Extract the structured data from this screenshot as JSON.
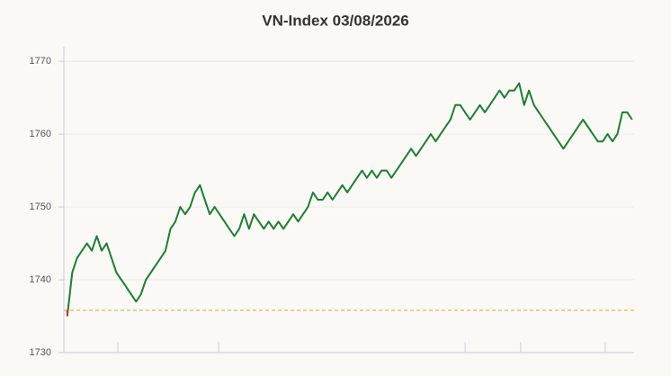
{
  "chart_data": {
    "type": "line",
    "title": "VN-Index 03/08/2026",
    "values": [
      1735,
      1741,
      1743,
      1744,
      1745,
      1744,
      1746,
      1744,
      1745,
      1743,
      1741,
      1740,
      1739,
      1738,
      1737,
      1738,
      1740,
      1741,
      1742,
      1743,
      1744,
      1747,
      1748,
      1750,
      1749,
      1750,
      1752,
      1753,
      1751,
      1749,
      1750,
      1749,
      1748,
      1747,
      1746,
      1747,
      1749,
      1747,
      1749,
      1748,
      1747,
      1748,
      1747,
      1748,
      1747,
      1748,
      1749,
      1748,
      1749,
      1750,
      1752,
      1751,
      1751,
      1752,
      1751,
      1752,
      1753,
      1752,
      1753,
      1754,
      1755,
      1754,
      1755,
      1754,
      1755,
      1755,
      1754,
      1755,
      1756,
      1757,
      1758,
      1757,
      1758,
      1759,
      1760,
      1759,
      1760,
      1761,
      1762,
      1764,
      1764,
      1763,
      1762,
      1763,
      1764,
      1763,
      1764,
      1765,
      1766,
      1765,
      1766,
      1766,
      1767,
      1764,
      1766,
      1764,
      1763,
      1762,
      1761,
      1760,
      1759,
      1758,
      1759,
      1760,
      1761,
      1762,
      1761,
      1760,
      1759,
      1759,
      1760,
      1759,
      1760,
      1763,
      1763,
      1762
    ],
    "color": "#1e7e34",
    "start_color": "#c0392b",
    "reference_line": 1735.8,
    "reference_color": "#e8a33d",
    "xlim": [
      -0.7,
      115.4
    ],
    "xticks": [
      10.3,
      30.8,
      81,
      92.3,
      109.5
    ],
    "ylim": [
      1730,
      1772
    ],
    "yticks": [
      1730,
      1740,
      1750,
      1760,
      1770
    ],
    "grid": true
  }
}
